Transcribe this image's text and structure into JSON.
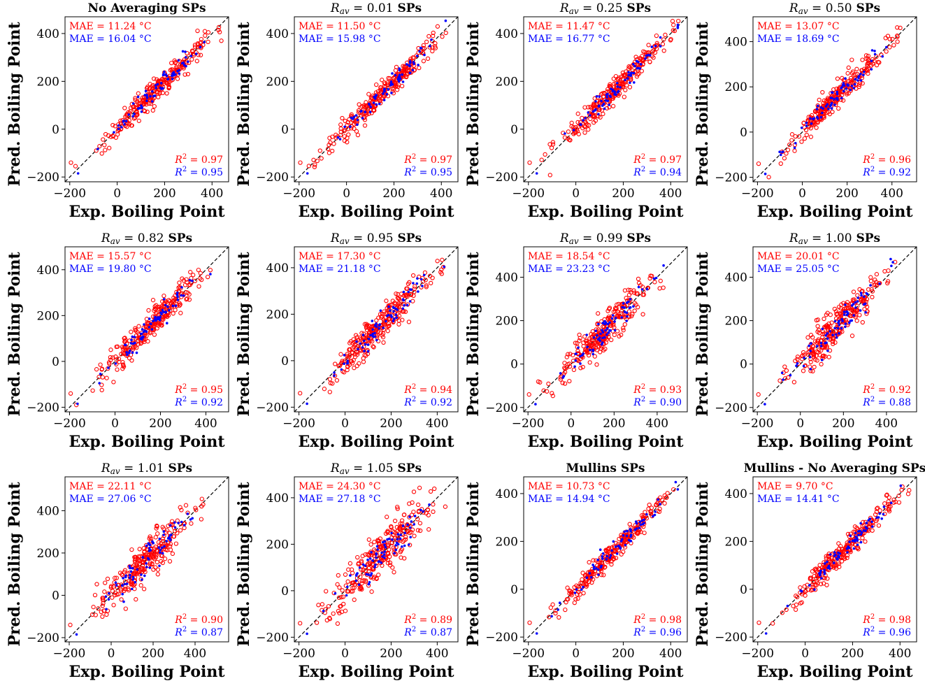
{
  "figure": {
    "xlabel": "Exp. Boiling Point",
    "ylabel": "Pred. Boiling Point",
    "colors": {
      "train": "#ff0000",
      "test": "#0000ff",
      "identity": "#000000"
    }
  },
  "chart_data": [
    {
      "type": "scatter",
      "title": "No Averaging SPs",
      "title_italic": "",
      "title_rest": "",
      "xlim": [
        -220,
        470
      ],
      "ylim": [
        -220,
        470
      ],
      "xticks": [
        -200,
        0,
        200,
        400
      ],
      "yticks": [
        -200,
        0,
        200,
        400
      ],
      "mae_train": "MAE = 11.24 °C",
      "mae_test": "MAE = 16.04 °C",
      "r2_train": "0.97",
      "r2_test": "0.95",
      "spread": [
        35,
        30
      ],
      "seed": 11
    },
    {
      "type": "scatter",
      "title": "",
      "title_italic": "Rav",
      "title_rest": " = 0.01 SPs",
      "xlim": [
        -220,
        470
      ],
      "ylim": [
        -220,
        470
      ],
      "xticks": [
        -200,
        0,
        200,
        400
      ],
      "yticks": [
        -200,
        0,
        200,
        400
      ],
      "mae_train": "MAE = 11.50 °C",
      "mae_test": "MAE = 15.98 °C",
      "r2_train": "0.97",
      "r2_test": "0.95",
      "spread": [
        35,
        30
      ],
      "seed": 12
    },
    {
      "type": "scatter",
      "title": "",
      "title_italic": "Rav",
      "title_rest": " = 0.25 SPs",
      "xlim": [
        -220,
        470
      ],
      "ylim": [
        -220,
        470
      ],
      "xticks": [
        -200,
        0,
        200,
        400
      ],
      "yticks": [
        -200,
        0,
        200,
        400
      ],
      "mae_train": "MAE = 11.47 °C",
      "mae_test": "MAE = 16.77 °C",
      "r2_train": "0.97",
      "r2_test": "0.94",
      "spread": [
        35,
        32
      ],
      "seed": 13
    },
    {
      "type": "scatter",
      "title": "",
      "title_italic": "Rav",
      "title_rest": " = 0.50 SPs",
      "xlim": [
        -220,
        510
      ],
      "ylim": [
        -220,
        510
      ],
      "xticks": [
        -200,
        0,
        200,
        400
      ],
      "yticks": [
        -200,
        0,
        200,
        400
      ],
      "mae_train": "MAE = 13.07 °C",
      "mae_test": "MAE = 18.69 °C",
      "r2_train": "0.96",
      "r2_test": "0.92",
      "spread": [
        40,
        38
      ],
      "seed": 14
    },
    {
      "type": "scatter",
      "title": "",
      "title_italic": "Rav",
      "title_rest": " = 0.82 SPs",
      "xlim": [
        -220,
        500
      ],
      "ylim": [
        -220,
        500
      ],
      "xticks": [
        -200,
        0,
        200,
        400
      ],
      "yticks": [
        -200,
        0,
        200,
        400
      ],
      "mae_train": "MAE = 15.57 °C",
      "mae_test": "MAE = 19.80 °C",
      "r2_train": "0.95",
      "r2_test": "0.92",
      "spread": [
        45,
        38
      ],
      "seed": 15
    },
    {
      "type": "scatter",
      "title": "",
      "title_italic": "Rav",
      "title_rest": " = 0.95 SPs",
      "xlim": [
        -220,
        490
      ],
      "ylim": [
        -220,
        490
      ],
      "xticks": [
        -200,
        0,
        200,
        400
      ],
      "yticks": [
        -200,
        0,
        200,
        400
      ],
      "mae_train": "MAE = 17.30 °C",
      "mae_test": "MAE = 21.18 °C",
      "r2_train": "0.94",
      "r2_test": "0.92",
      "spread": [
        50,
        40
      ],
      "seed": 16
    },
    {
      "type": "scatter",
      "title": "",
      "title_italic": "Rav",
      "title_rest": " = 0.99 SPs",
      "xlim": [
        -220,
        540
      ],
      "ylim": [
        -220,
        540
      ],
      "xticks": [
        -200,
        0,
        200,
        400
      ],
      "yticks": [
        -200,
        0,
        200,
        400
      ],
      "mae_train": "MAE = 18.54 °C",
      "mae_test": "MAE = 23.23 °C",
      "r2_train": "0.93",
      "r2_test": "0.90",
      "spread": [
        55,
        45
      ],
      "seed": 17
    },
    {
      "type": "scatter",
      "title": "",
      "title_italic": "Rav",
      "title_rest": " = 1.00 SPs",
      "xlim": [
        -220,
        540
      ],
      "ylim": [
        -220,
        540
      ],
      "xticks": [
        -200,
        0,
        200,
        400
      ],
      "yticks": [
        -200,
        0,
        200,
        400
      ],
      "mae_train": "MAE = 20.01 °C",
      "mae_test": "MAE = 25.05 °C",
      "r2_train": "0.92",
      "r2_test": "0.88",
      "spread": [
        60,
        50
      ],
      "seed": 18
    },
    {
      "type": "scatter",
      "title": "",
      "title_italic": "Rav",
      "title_rest": " = 1.01 SPs",
      "xlim": [
        -220,
        560
      ],
      "ylim": [
        -220,
        560
      ],
      "xticks": [
        -200,
        0,
        200,
        400
      ],
      "yticks": [
        -200,
        0,
        200,
        400
      ],
      "mae_train": "MAE = 22.11 °C",
      "mae_test": "MAE = 27.06 °C",
      "r2_train": "0.90",
      "r2_test": "0.87",
      "spread": [
        65,
        55
      ],
      "seed": 19
    },
    {
      "type": "scatter",
      "title": "",
      "title_italic": "Rav",
      "title_rest": " = 1.05 SPs",
      "xlim": [
        -220,
        490
      ],
      "ylim": [
        -220,
        490
      ],
      "xticks": [
        -200,
        0,
        200,
        400
      ],
      "yticks": [
        -200,
        0,
        200,
        400
      ],
      "mae_train": "MAE = 24.30 °C",
      "mae_test": "MAE = 27.18 °C",
      "r2_train": "0.89",
      "r2_test": "0.87",
      "spread": [
        70,
        55
      ],
      "seed": 20
    },
    {
      "type": "scatter",
      "title": "Mullins SPs",
      "title_italic": "",
      "title_rest": "",
      "xlim": [
        -220,
        470
      ],
      "ylim": [
        -220,
        470
      ],
      "xticks": [
        -200,
        0,
        200,
        400
      ],
      "yticks": [
        -200,
        0,
        200,
        400
      ],
      "mae_train": "MAE = 10.73 °C",
      "mae_test": "MAE = 14.94 °C",
      "r2_train": "0.98",
      "r2_test": "0.96",
      "spread": [
        32,
        28
      ],
      "seed": 21
    },
    {
      "type": "scatter",
      "title": "Mullins - No Averaging SPs",
      "title_italic": "",
      "title_rest": "",
      "xlim": [
        -220,
        470
      ],
      "ylim": [
        -220,
        470
      ],
      "xticks": [
        -200,
        0,
        200,
        400
      ],
      "yticks": [
        -200,
        0,
        200,
        400
      ],
      "mae_train": "MAE = 9.70 °C",
      "mae_test": "MAE = 14.41 °C",
      "r2_train": "0.98",
      "r2_test": "0.96",
      "spread": [
        30,
        26
      ],
      "seed": 22
    }
  ]
}
